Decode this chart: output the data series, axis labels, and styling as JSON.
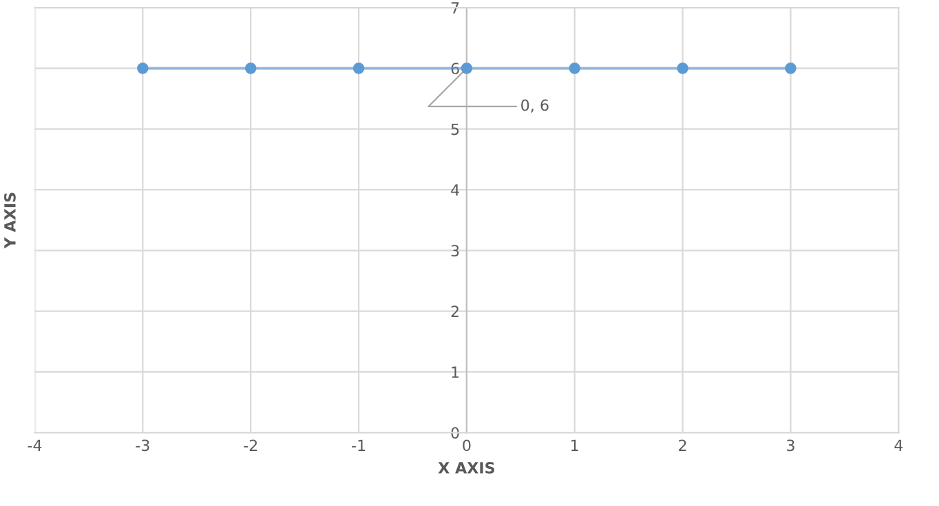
{
  "chart_data": {
    "type": "line",
    "xlabel": "X AXIS",
    "ylabel": "Y AXIS",
    "series": [
      {
        "color": "#5b9bd5",
        "x": [
          -3,
          -2,
          -1,
          0,
          1,
          2,
          3
        ],
        "values": [
          6,
          6,
          6,
          6,
          6,
          6,
          6
        ]
      }
    ],
    "xlim": [
      -4,
      4
    ],
    "xticks": [
      -4,
      -3,
      -2,
      -1,
      0,
      1,
      2,
      3,
      4
    ],
    "ylim": [
      0,
      7
    ],
    "yticks": [
      0,
      1,
      2,
      3,
      4,
      5,
      6,
      7
    ],
    "grid": true,
    "marker": "circle",
    "line_style": "solid",
    "annotations": [
      {
        "text": "0, 6",
        "x": 0,
        "y": 6
      }
    ]
  }
}
